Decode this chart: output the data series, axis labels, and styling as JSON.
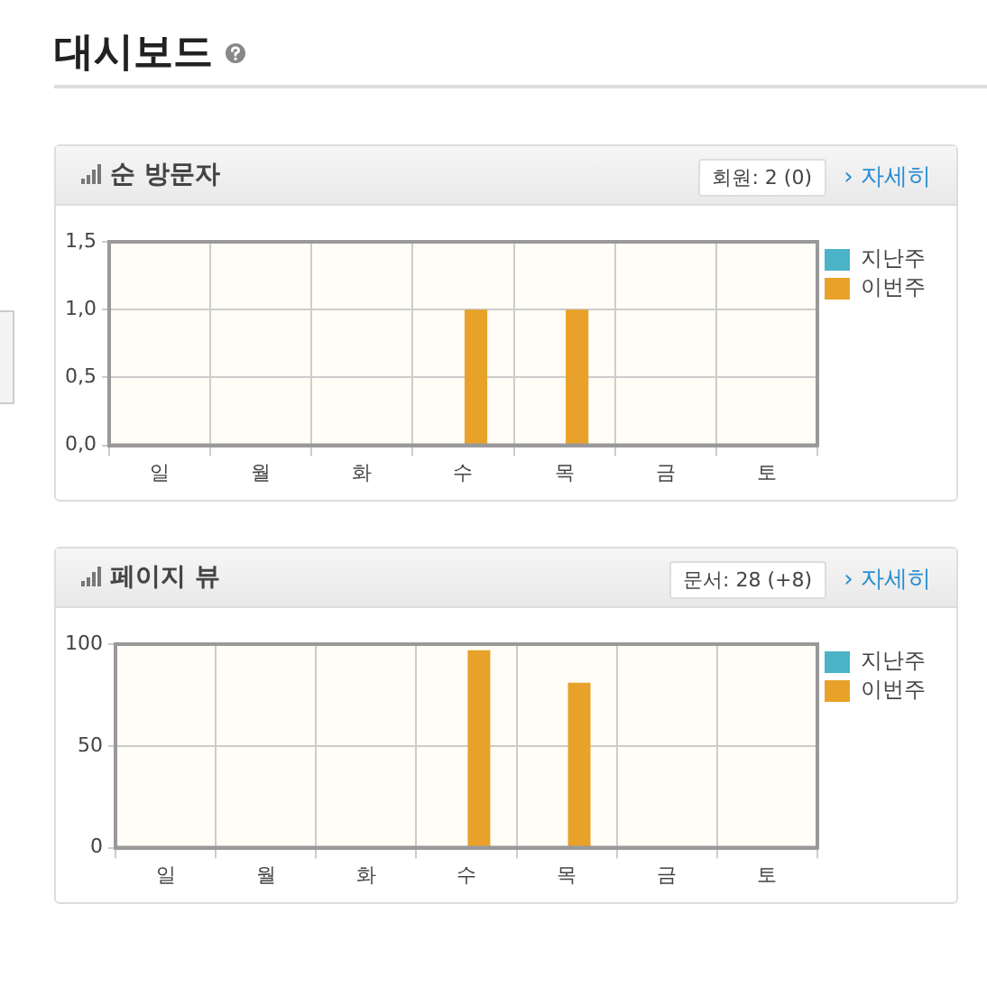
{
  "chart_data": [
    {
      "type": "bar",
      "title": "순 방문자",
      "annotations": [
        "대시보드",
        "회원: 2 (0)",
        "› 자세히"
      ],
      "categories": [
        "일",
        "월",
        "화",
        "수",
        "목",
        "금",
        "토"
      ],
      "series": [
        {
          "name": "지난주",
          "color": "#4bb3c8",
          "values": [
            0,
            0,
            0,
            0,
            0,
            0,
            0
          ]
        },
        {
          "name": "이번주",
          "color": "#e8a229",
          "values": [
            0,
            0,
            0,
            1,
            1,
            0,
            0
          ]
        }
      ],
      "ylim": [
        0,
        1.5
      ],
      "yticks": [
        {
          "value": 0,
          "label": "0,0"
        },
        {
          "value": 0.5,
          "label": "0,5"
        },
        {
          "value": 1,
          "label": "1,0"
        },
        {
          "value": 1.5,
          "label": "1,5"
        }
      ],
      "grid": true,
      "legend": "right"
    },
    {
      "type": "bar",
      "title": "페이지 뷰",
      "annotations": [
        "문서: 28 (+8)",
        "› 자세히"
      ],
      "categories": [
        "일",
        "월",
        "화",
        "수",
        "목",
        "금",
        "토"
      ],
      "series": [
        {
          "name": "지난주",
          "color": "#4bb3c8",
          "values": [
            0,
            0,
            0,
            0,
            0,
            0,
            0
          ]
        },
        {
          "name": "이번주",
          "color": "#e8a229",
          "values": [
            0,
            0,
            0,
            97,
            81,
            0,
            0
          ]
        }
      ],
      "ylim": [
        0,
        100
      ],
      "yticks": [
        0,
        50,
        100
      ],
      "grid": true,
      "legend": "right"
    }
  ]
}
